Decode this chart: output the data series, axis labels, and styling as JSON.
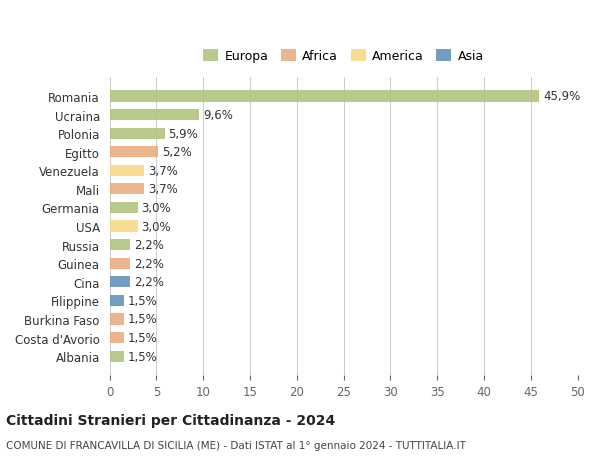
{
  "categories": [
    "Romania",
    "Ucraina",
    "Polonia",
    "Egitto",
    "Venezuela",
    "Mali",
    "Germania",
    "USA",
    "Russia",
    "Guinea",
    "Cina",
    "Filippine",
    "Burkina Faso",
    "Costa d'Avorio",
    "Albania"
  ],
  "values": [
    45.9,
    9.6,
    5.9,
    5.2,
    3.7,
    3.7,
    3.0,
    3.0,
    2.2,
    2.2,
    2.2,
    1.5,
    1.5,
    1.5,
    1.5
  ],
  "labels": [
    "45,9%",
    "9,6%",
    "5,9%",
    "5,2%",
    "3,7%",
    "3,7%",
    "3,0%",
    "3,0%",
    "2,2%",
    "2,2%",
    "2,2%",
    "1,5%",
    "1,5%",
    "1,5%",
    "1,5%"
  ],
  "continents": [
    "Europa",
    "Europa",
    "Europa",
    "Africa",
    "America",
    "Africa",
    "Europa",
    "America",
    "Europa",
    "Africa",
    "Asia",
    "Asia",
    "Africa",
    "Africa",
    "Europa"
  ],
  "continent_colors": {
    "Europa": "#adc178",
    "Africa": "#e8a87c",
    "America": "#f5d87e",
    "Asia": "#5b8db8"
  },
  "legend_order": [
    "Europa",
    "Africa",
    "America",
    "Asia"
  ],
  "legend_colors": {
    "Europa": "#adc178",
    "Africa": "#e8a87c",
    "America": "#f5d87e",
    "Asia": "#5b8db8"
  },
  "xlim": [
    0,
    50
  ],
  "xticks": [
    0,
    5,
    10,
    15,
    20,
    25,
    30,
    35,
    40,
    45,
    50
  ],
  "title_main": "Cittadini Stranieri per Cittadinanza - 2024",
  "title_sub": "COMUNE DI FRANCAVILLA DI SICILIA (ME) - Dati ISTAT al 1° gennaio 2024 - TUTTITALIA.IT",
  "background_color": "#ffffff",
  "grid_color": "#cccccc",
  "bar_alpha": 0.85,
  "label_fontsize": 8.5,
  "ytick_fontsize": 8.5,
  "xtick_fontsize": 8.5,
  "title_fontsize": 10,
  "sub_fontsize": 7.5
}
